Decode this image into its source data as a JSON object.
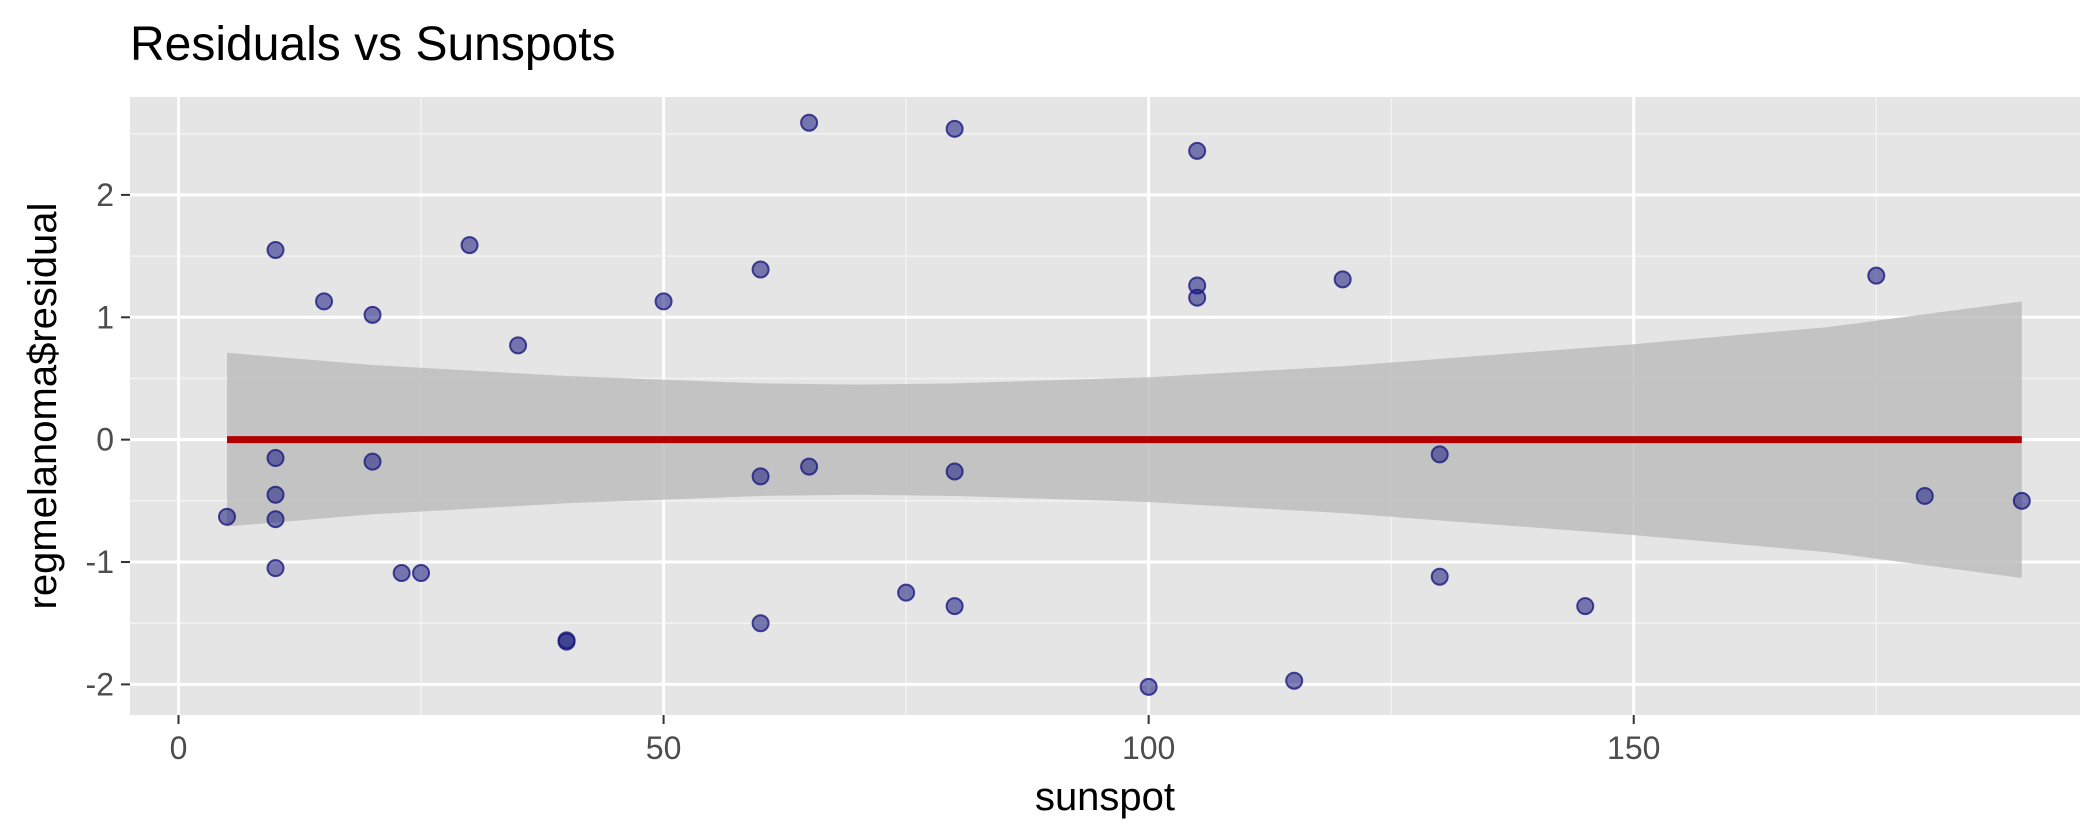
{
  "chart_data": {
    "type": "scatter",
    "title": "Residuals vs Sunspots",
    "xlabel": "sunspot",
    "ylabel": "regmelanoma$residual",
    "xlim": [
      -5,
      196
    ],
    "ylim": [
      -2.25,
      2.8
    ],
    "x_ticks": [
      0,
      50,
      100,
      150
    ],
    "y_ticks": [
      -2,
      -1,
      0,
      1,
      2
    ],
    "x_tick_labels": [
      "0",
      "50",
      "100",
      "150"
    ],
    "y_tick_labels": [
      "-2",
      "-1",
      "0",
      "1",
      "2"
    ],
    "grid": true,
    "legend": "none",
    "point_color": "#1a1a80",
    "line_color": "#b30000",
    "band_color": "#bdbdbd",
    "panel_background": "#e5e5e5",
    "points": [
      {
        "x": 5,
        "y": -0.63
      },
      {
        "x": 10,
        "y": 1.55
      },
      {
        "x": 10,
        "y": -0.15
      },
      {
        "x": 10,
        "y": -0.45
      },
      {
        "x": 10,
        "y": -0.65
      },
      {
        "x": 10,
        "y": -1.05
      },
      {
        "x": 15,
        "y": 1.13
      },
      {
        "x": 20,
        "y": 1.02
      },
      {
        "x": 20,
        "y": -0.18
      },
      {
        "x": 23,
        "y": -1.09
      },
      {
        "x": 25,
        "y": -1.09
      },
      {
        "x": 30,
        "y": 1.59
      },
      {
        "x": 35,
        "y": 0.77
      },
      {
        "x": 40,
        "y": -1.64
      },
      {
        "x": 40,
        "y": -1.65
      },
      {
        "x": 50,
        "y": 1.13
      },
      {
        "x": 60,
        "y": 1.39
      },
      {
        "x": 60,
        "y": -0.3
      },
      {
        "x": 60,
        "y": -1.5
      },
      {
        "x": 65,
        "y": 2.59
      },
      {
        "x": 65,
        "y": -0.22
      },
      {
        "x": 75,
        "y": -1.25
      },
      {
        "x": 80,
        "y": 2.54
      },
      {
        "x": 80,
        "y": -0.26
      },
      {
        "x": 80,
        "y": -1.36
      },
      {
        "x": 100,
        "y": -2.02
      },
      {
        "x": 105,
        "y": 2.36
      },
      {
        "x": 105,
        "y": 1.26
      },
      {
        "x": 105,
        "y": 1.16
      },
      {
        "x": 115,
        "y": -1.97
      },
      {
        "x": 120,
        "y": 1.31
      },
      {
        "x": 130,
        "y": -0.12
      },
      {
        "x": 130,
        "y": -1.12
      },
      {
        "x": 145,
        "y": -1.36
      },
      {
        "x": 175,
        "y": 1.34
      },
      {
        "x": 180,
        "y": -0.46
      },
      {
        "x": 190,
        "y": -0.5
      }
    ],
    "fit_line": {
      "x": [
        5,
        190
      ],
      "y": [
        0,
        0
      ]
    },
    "confidence_band": {
      "x": [
        5,
        20,
        40,
        60,
        70,
        80,
        100,
        120,
        150,
        170,
        190
      ],
      "upper": [
        0.71,
        0.61,
        0.52,
        0.46,
        0.45,
        0.46,
        0.51,
        0.6,
        0.78,
        0.92,
        1.13
      ],
      "lower": [
        -0.71,
        -0.61,
        -0.52,
        -0.46,
        -0.45,
        -0.46,
        -0.51,
        -0.6,
        -0.78,
        -0.92,
        -1.13
      ]
    }
  }
}
